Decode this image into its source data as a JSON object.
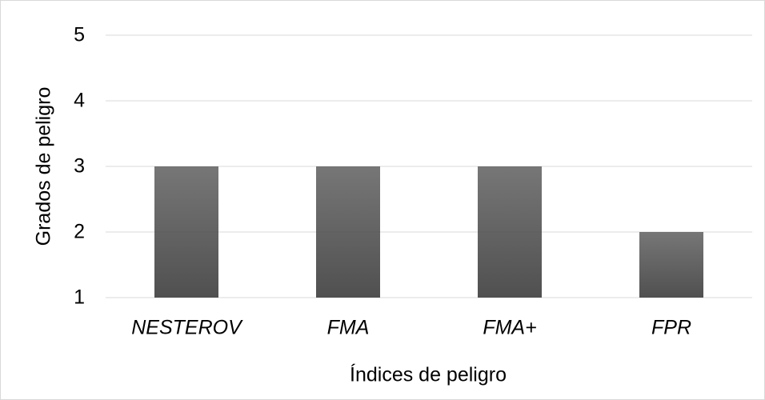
{
  "chart_data": {
    "type": "bar",
    "categories": [
      "NESTEROV",
      "FMA",
      "FMA+",
      "FPR"
    ],
    "values": [
      3,
      3,
      3,
      2
    ],
    "color": "#505050",
    "ylim": [
      1,
      5
    ],
    "yticks": [
      1,
      2,
      3,
      4,
      5
    ],
    "grid": true,
    "x_label": "Índices de peligro",
    "y_label": "Grados de peligro"
  }
}
